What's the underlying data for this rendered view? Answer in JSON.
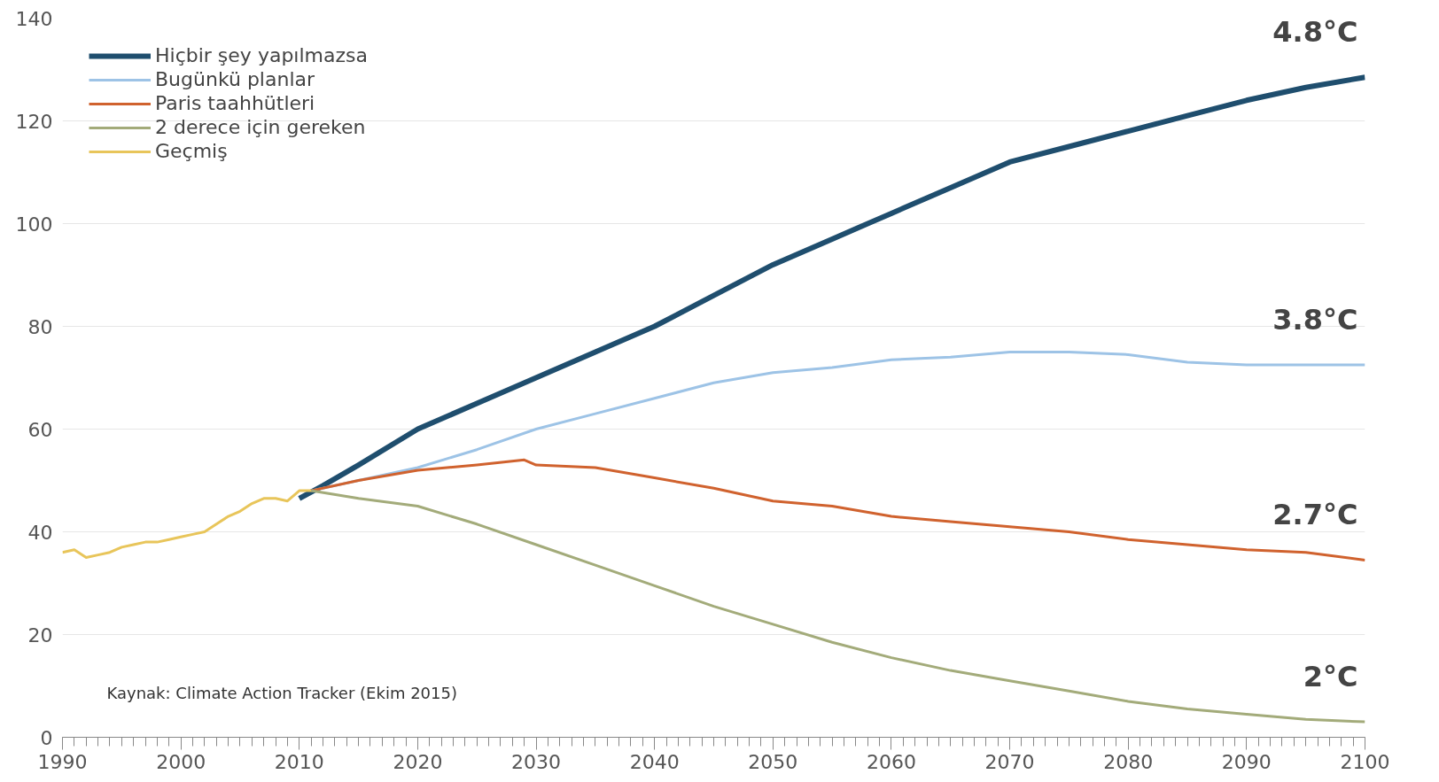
{
  "chart_data": {
    "type": "line",
    "xlim": [
      1990,
      2100
    ],
    "xticks": [
      1990,
      2000,
      2010,
      2020,
      2030,
      2040,
      2050,
      2060,
      2070,
      2080,
      2090,
      2100
    ],
    "ylim": [
      0,
      140
    ],
    "yticks": [
      0,
      20,
      40,
      60,
      80,
      100,
      120,
      140
    ],
    "grid": "y",
    "legend": "top left",
    "line_style": "solid",
    "marker": "none",
    "series": [
      {
        "name": "Hiçbir şey yapılmazsa",
        "color": "#1f4e6e",
        "x": [
          2010,
          2012,
          2015,
          2020,
          2025,
          2030,
          2035,
          2040,
          2045,
          2050,
          2055,
          2060,
          2065,
          2070,
          2075,
          2080,
          2085,
          2090,
          2095,
          2100
        ],
        "values": [
          46.5,
          49,
          53,
          60,
          65,
          70,
          75,
          80,
          86,
          92,
          97,
          102,
          107,
          112,
          115,
          118,
          121,
          124,
          126.5,
          128.5
        ]
      },
      {
        "name": "Bugünkü planlar",
        "color": "#9dc3e6",
        "x": [
          2011,
          2015,
          2020,
          2025,
          2030,
          2035,
          2040,
          2045,
          2050,
          2055,
          2060,
          2065,
          2070,
          2075,
          2080,
          2085,
          2090,
          2095,
          2100
        ],
        "values": [
          48,
          50,
          52.5,
          56,
          60,
          63,
          66,
          69,
          71,
          72,
          73.5,
          74,
          75,
          75,
          74.5,
          73,
          72.5,
          72.5,
          72.5
        ]
      },
      {
        "name": "Paris taahhütleri",
        "color": "#d0622e",
        "x": [
          2011,
          2015,
          2020,
          2025,
          2029,
          2030,
          2035,
          2040,
          2045,
          2050,
          2055,
          2060,
          2065,
          2070,
          2075,
          2080,
          2085,
          2090,
          2095,
          2100
        ],
        "values": [
          48,
          50,
          52,
          53,
          54,
          53,
          52.5,
          50.5,
          48.5,
          46,
          45,
          43,
          42,
          41,
          40,
          38.5,
          37.5,
          36.5,
          36,
          34.5
        ]
      },
      {
        "name": "2 derece için gereken",
        "color": "#a3ab7a",
        "x": [
          2011,
          2015,
          2020,
          2025,
          2030,
          2035,
          2040,
          2045,
          2050,
          2055,
          2060,
          2065,
          2070,
          2075,
          2080,
          2085,
          2090,
          2095,
          2100
        ],
        "values": [
          48,
          46.5,
          45,
          41.5,
          37.5,
          33.5,
          29.5,
          25.5,
          22,
          18.5,
          15.5,
          13,
          11,
          9,
          7,
          5.5,
          4.5,
          3.5,
          3
        ]
      },
      {
        "name": "Geçmiş",
        "color": "#e8c55a",
        "x": [
          1990,
          1991,
          1992,
          1993,
          1994,
          1995,
          1996,
          1997,
          1998,
          1999,
          2000,
          2001,
          2002,
          2003,
          2004,
          2005,
          2006,
          2007,
          2008,
          2009,
          2010,
          2011
        ],
        "values": [
          36,
          36.5,
          35,
          35.5,
          36,
          37,
          37.5,
          38,
          38,
          38.5,
          39,
          39.5,
          40,
          41.5,
          43,
          44,
          45.5,
          46.5,
          46.5,
          46,
          48,
          48
        ]
      }
    ],
    "annotations": [
      "4.8°C",
      "3.8°C",
      "2.7°C",
      "2°C",
      "Kaynak: Climate Action Tracker (Ekim 2015)"
    ]
  }
}
